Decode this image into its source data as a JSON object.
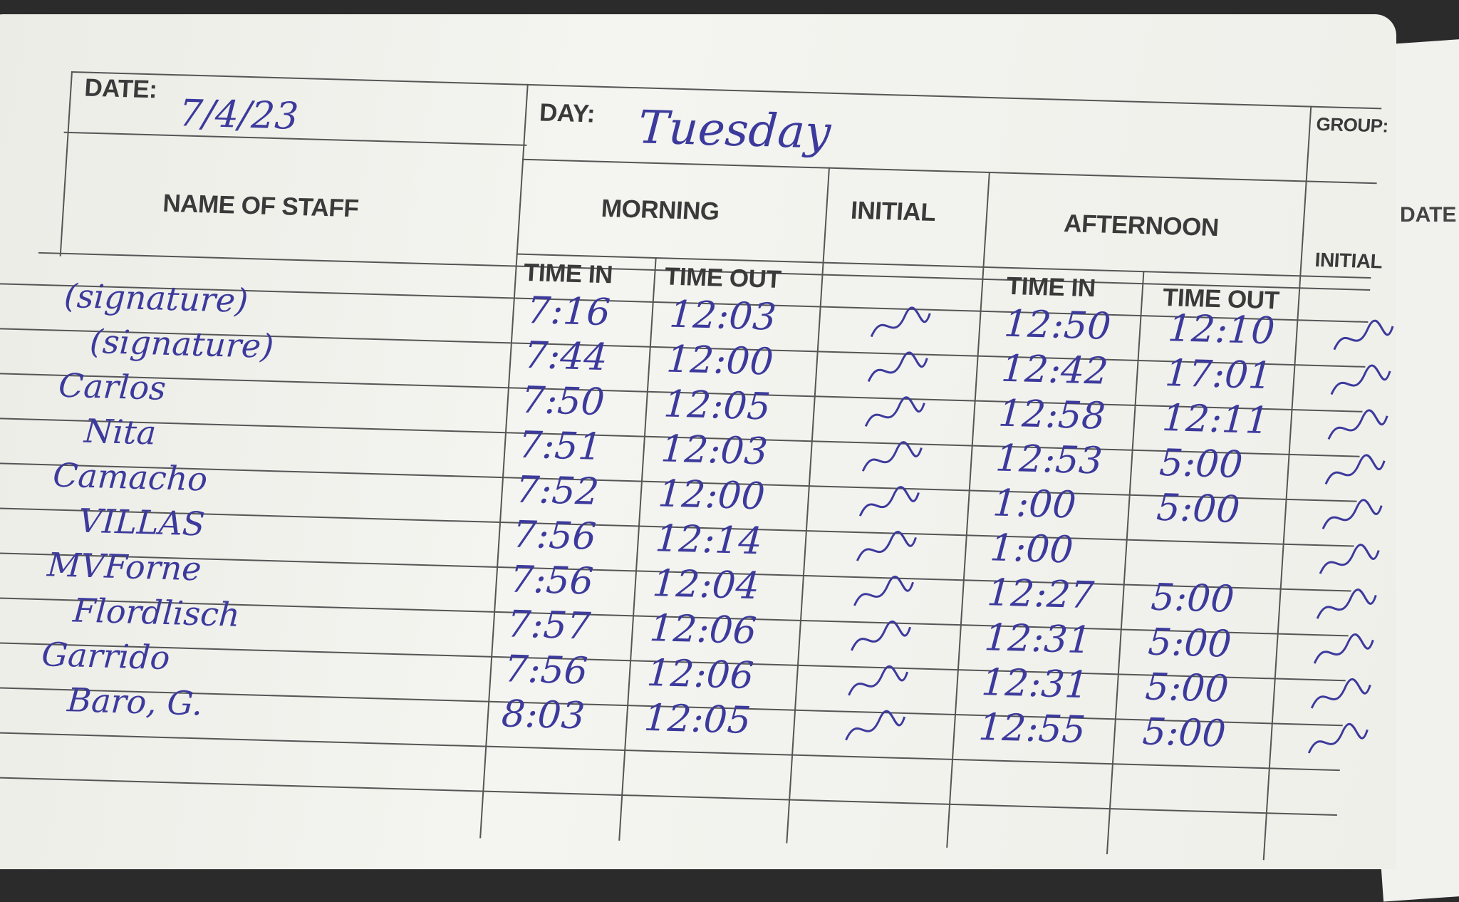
{
  "header": {
    "date_label": "DATE:",
    "date_value": "7/4/23",
    "day_label": "DAY:",
    "day_value": "Tuesday",
    "group_label": "GROUP:",
    "next_page_date_label": "DATE"
  },
  "columns": {
    "name": "NAME OF STAFF",
    "morning": "MORNING",
    "afternoon": "AFTERNOON",
    "initial": "INITIAL",
    "time_in": "TIME IN",
    "time_out": "TIME OUT"
  },
  "ink_color": "#3c3a9c",
  "rows": [
    {
      "name": "(signature)",
      "am_in": "7:16",
      "am_out": "12:03",
      "pm_in": "12:50",
      "pm_out": "12:10"
    },
    {
      "name": "(signature)",
      "am_in": "7:44",
      "am_out": "12:00",
      "pm_in": "12:42",
      "pm_out": "17:01"
    },
    {
      "name": "Carlos",
      "am_in": "7:50",
      "am_out": "12:05",
      "pm_in": "12:58",
      "pm_out": "12:11"
    },
    {
      "name": "Nita",
      "am_in": "7:51",
      "am_out": "12:03",
      "pm_in": "12:53",
      "pm_out": "5:00"
    },
    {
      "name": "Camacho",
      "am_in": "7:52",
      "am_out": "12:00",
      "pm_in": "1:00",
      "pm_out": "5:00"
    },
    {
      "name": "VILLAS",
      "am_in": "7:56",
      "am_out": "12:14",
      "pm_in": "1:00",
      "pm_out": ""
    },
    {
      "name": "MVForne",
      "am_in": "7:56",
      "am_out": "12:04",
      "pm_in": "12:27",
      "pm_out": "5:00"
    },
    {
      "name": "Flordlisch",
      "am_in": "7:57",
      "am_out": "12:06",
      "pm_in": "12:31",
      "pm_out": "5:00"
    },
    {
      "name": "Garrido",
      "am_in": "7:56",
      "am_out": "12:06",
      "pm_in": "12:31",
      "pm_out": "5:00"
    },
    {
      "name": "Baro, G.",
      "am_in": "8:03",
      "am_out": "12:05",
      "pm_in": "12:55",
      "pm_out": "5:00"
    }
  ]
}
